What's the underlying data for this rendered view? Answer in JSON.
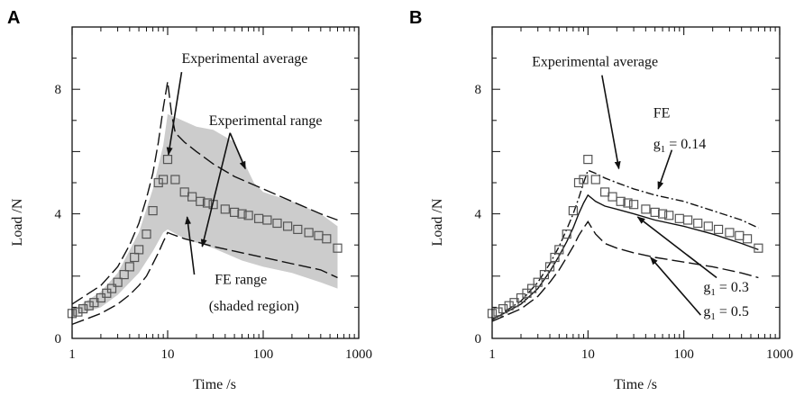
{
  "chart_data": [
    {
      "type": "line",
      "panel_label": "A",
      "xlabel": "Time /s",
      "ylabel": "Load /N",
      "x_scale": "log",
      "xlim": [
        1,
        1000
      ],
      "ylim": [
        0,
        10
      ],
      "x_ticks": [
        {
          "value": 1,
          "label": "1"
        },
        {
          "value": 10,
          "label": "10"
        },
        {
          "value": 100,
          "label": "100"
        },
        {
          "value": 1000,
          "label": "1000"
        }
      ],
      "y_ticks": [
        {
          "value": 0,
          "label": "0"
        },
        {
          "value": 4,
          "label": "4"
        },
        {
          "value": 8,
          "label": "8"
        }
      ],
      "grid": false,
      "series": [
        {
          "kind": "shaded-band",
          "color": "#cccccc",
          "upper": [
            [
              1,
              0.9
            ],
            [
              2,
              1.5
            ],
            [
              3,
              2.1
            ],
            [
              5,
              3.4
            ],
            [
              7,
              4.8
            ],
            [
              9,
              6.2
            ],
            [
              10,
              7.2
            ],
            [
              12,
              7.1
            ],
            [
              20,
              6.8
            ],
            [
              30,
              6.7
            ],
            [
              50,
              6.3
            ],
            [
              80,
              5.0
            ],
            [
              100,
              4.7
            ],
            [
              200,
              4.4
            ],
            [
              400,
              4.0
            ],
            [
              600,
              3.6
            ]
          ],
          "lower": [
            [
              1,
              0.7
            ],
            [
              2,
              1.0
            ],
            [
              3,
              1.4
            ],
            [
              5,
              2.1
            ],
            [
              7,
              2.8
            ],
            [
              9,
              3.4
            ],
            [
              10,
              3.5
            ],
            [
              15,
              3.2
            ],
            [
              30,
              2.9
            ],
            [
              60,
              2.5
            ],
            [
              100,
              2.3
            ],
            [
              200,
              2.1
            ],
            [
              400,
              1.8
            ],
            [
              600,
              1.6
            ]
          ]
        },
        {
          "kind": "dashed-line",
          "color": "#111111",
          "points": [
            [
              1,
              1.1
            ],
            [
              2,
              1.7
            ],
            [
              3,
              2.3
            ],
            [
              4,
              3.0
            ],
            [
              5,
              3.7
            ],
            [
              6,
              4.5
            ],
            [
              7,
              5.3
            ],
            [
              8,
              6.3
            ],
            [
              9,
              7.4
            ],
            [
              10,
              8.25
            ],
            [
              11,
              7.2
            ],
            [
              12,
              6.6
            ],
            [
              15,
              6.3
            ],
            [
              20,
              6.0
            ],
            [
              30,
              5.6
            ],
            [
              50,
              5.2
            ],
            [
              100,
              4.8
            ],
            [
              200,
              4.4
            ],
            [
              400,
              4.0
            ],
            [
              600,
              3.8
            ]
          ]
        },
        {
          "kind": "dashed-line",
          "color": "#111111",
          "points": [
            [
              1,
              0.45
            ],
            [
              2,
              0.8
            ],
            [
              3,
              1.1
            ],
            [
              4,
              1.4
            ],
            [
              5,
              1.7
            ],
            [
              6,
              2.0
            ],
            [
              7,
              2.4
            ],
            [
              8,
              2.75
            ],
            [
              9,
              3.1
            ],
            [
              10,
              3.4
            ],
            [
              11,
              3.35
            ],
            [
              15,
              3.2
            ],
            [
              20,
              3.1
            ],
            [
              30,
              2.95
            ],
            [
              50,
              2.8
            ],
            [
              100,
              2.6
            ],
            [
              200,
              2.4
            ],
            [
              400,
              2.2
            ],
            [
              600,
              1.95
            ]
          ]
        },
        {
          "kind": "markers",
          "marker": "open-square",
          "color": "#555555",
          "points": [
            [
              1,
              0.8
            ],
            [
              1.15,
              0.85
            ],
            [
              1.3,
              0.95
            ],
            [
              1.5,
              1.05
            ],
            [
              1.7,
              1.15
            ],
            [
              2,
              1.3
            ],
            [
              2.3,
              1.45
            ],
            [
              2.6,
              1.6
            ],
            [
              3,
              1.8
            ],
            [
              3.5,
              2.05
            ],
            [
              4,
              2.3
            ],
            [
              4.5,
              2.6
            ],
            [
              5,
              2.85
            ],
            [
              6,
              3.35
            ],
            [
              7,
              4.1
            ],
            [
              8,
              5.0
            ],
            [
              9,
              5.1
            ],
            [
              10,
              5.75
            ],
            [
              12,
              5.1
            ],
            [
              15,
              4.7
            ],
            [
              18,
              4.55
            ],
            [
              22,
              4.4
            ],
            [
              26,
              4.35
            ],
            [
              30,
              4.3
            ],
            [
              40,
              4.15
            ],
            [
              50,
              4.05
            ],
            [
              60,
              4.0
            ],
            [
              70,
              3.95
            ],
            [
              90,
              3.85
            ],
            [
              110,
              3.8
            ],
            [
              140,
              3.7
            ],
            [
              180,
              3.6
            ],
            [
              230,
              3.5
            ],
            [
              300,
              3.4
            ],
            [
              380,
              3.3
            ],
            [
              460,
              3.2
            ],
            [
              600,
              2.9
            ]
          ]
        }
      ],
      "annotations": [
        {
          "text": "Experimental average",
          "x": 14,
          "y": 8.85,
          "arrow_from": [
            14,
            8.55
          ],
          "arrow_to": [
            10.2,
            5.9
          ]
        },
        {
          "text": "Experimental range",
          "x": 27,
          "y": 6.85,
          "arrow_from": [
            45,
            6.6
          ],
          "arrow_to": [
            65,
            5.45
          ],
          "arrow2_to": [
            23,
            2.95
          ]
        },
        {
          "text": "FE range",
          "x": 31,
          "y": 1.75
        },
        {
          "text": "(shaded region)",
          "x": 27,
          "y": 0.9,
          "arrow_from": [
            19,
            2.05
          ],
          "arrow_to": [
            16,
            3.9
          ]
        }
      ]
    },
    {
      "type": "line",
      "panel_label": "B",
      "xlabel": "Time /s",
      "ylabel": "Load /N",
      "x_scale": "log",
      "xlim": [
        1,
        1000
      ],
      "ylim": [
        0,
        10
      ],
      "x_ticks": [
        {
          "value": 1,
          "label": "1"
        },
        {
          "value": 10,
          "label": "10"
        },
        {
          "value": 100,
          "label": "100"
        },
        {
          "value": 1000,
          "label": "1000"
        }
      ],
      "y_ticks": [
        {
          "value": 0,
          "label": "0"
        },
        {
          "value": 4,
          "label": "4"
        },
        {
          "value": 8,
          "label": "8"
        }
      ],
      "grid": false,
      "series": [
        {
          "kind": "dash-dot-line",
          "label_parts": [
            "g",
            "1",
            " = 0.14"
          ],
          "color": "#111111",
          "points": [
            [
              1,
              0.6
            ],
            [
              2,
              1.2
            ],
            [
              3,
              1.8
            ],
            [
              4,
              2.4
            ],
            [
              5,
              2.95
            ],
            [
              6,
              3.5
            ],
            [
              7,
              4.0
            ],
            [
              8,
              4.5
            ],
            [
              9,
              5.0
            ],
            [
              10,
              5.4
            ],
            [
              12,
              5.3
            ],
            [
              15,
              5.15
            ],
            [
              20,
              5.0
            ],
            [
              30,
              4.8
            ],
            [
              50,
              4.6
            ],
            [
              100,
              4.4
            ],
            [
              200,
              4.1
            ],
            [
              400,
              3.8
            ],
            [
              600,
              3.55
            ]
          ]
        },
        {
          "kind": "solid-line",
          "label_parts": [
            "g",
            "1",
            " = 0.3"
          ],
          "color": "#111111",
          "points": [
            [
              1,
              0.6
            ],
            [
              2,
              1.1
            ],
            [
              3,
              1.6
            ],
            [
              4,
              2.15
            ],
            [
              5,
              2.65
            ],
            [
              6,
              3.1
            ],
            [
              7,
              3.55
            ],
            [
              8,
              4.0
            ],
            [
              9,
              4.35
            ],
            [
              10,
              4.6
            ],
            [
              12,
              4.4
            ],
            [
              15,
              4.25
            ],
            [
              20,
              4.15
            ],
            [
              30,
              4.0
            ],
            [
              50,
              3.8
            ],
            [
              100,
              3.6
            ],
            [
              200,
              3.35
            ],
            [
              400,
              3.05
            ],
            [
              600,
              2.85
            ]
          ]
        },
        {
          "kind": "dashed-line",
          "label_parts": [
            "g",
            "1",
            " = 0.5"
          ],
          "color": "#111111",
          "points": [
            [
              1,
              0.55
            ],
            [
              2,
              0.95
            ],
            [
              3,
              1.35
            ],
            [
              4,
              1.8
            ],
            [
              5,
              2.2
            ],
            [
              6,
              2.6
            ],
            [
              7,
              2.95
            ],
            [
              8,
              3.3
            ],
            [
              9,
              3.55
            ],
            [
              10,
              3.75
            ],
            [
              12,
              3.35
            ],
            [
              15,
              3.05
            ],
            [
              20,
              2.9
            ],
            [
              30,
              2.75
            ],
            [
              50,
              2.6
            ],
            [
              100,
              2.45
            ],
            [
              200,
              2.3
            ],
            [
              400,
              2.1
            ],
            [
              600,
              1.95
            ]
          ]
        },
        {
          "kind": "markers",
          "marker": "open-square",
          "color": "#555555",
          "points": [
            [
              1,
              0.8
            ],
            [
              1.15,
              0.85
            ],
            [
              1.3,
              0.95
            ],
            [
              1.5,
              1.05
            ],
            [
              1.7,
              1.15
            ],
            [
              2,
              1.3
            ],
            [
              2.3,
              1.45
            ],
            [
              2.6,
              1.6
            ],
            [
              3,
              1.8
            ],
            [
              3.5,
              2.05
            ],
            [
              4,
              2.3
            ],
            [
              4.5,
              2.6
            ],
            [
              5,
              2.85
            ],
            [
              6,
              3.35
            ],
            [
              7,
              4.1
            ],
            [
              8,
              5.0
            ],
            [
              9,
              5.1
            ],
            [
              10,
              5.75
            ],
            [
              12,
              5.1
            ],
            [
              15,
              4.7
            ],
            [
              18,
              4.55
            ],
            [
              22,
              4.4
            ],
            [
              26,
              4.35
            ],
            [
              30,
              4.3
            ],
            [
              40,
              4.15
            ],
            [
              50,
              4.05
            ],
            [
              60,
              4.0
            ],
            [
              70,
              3.95
            ],
            [
              90,
              3.85
            ],
            [
              110,
              3.8
            ],
            [
              140,
              3.7
            ],
            [
              180,
              3.6
            ],
            [
              230,
              3.5
            ],
            [
              300,
              3.4
            ],
            [
              380,
              3.3
            ],
            [
              460,
              3.2
            ],
            [
              600,
              2.9
            ]
          ]
        }
      ],
      "annotations": [
        {
          "text": "Experimental average",
          "x": 2.6,
          "y": 8.75,
          "arrow_from": [
            14,
            8.45
          ],
          "arrow_to": [
            21,
            5.45
          ]
        },
        {
          "text": "FE",
          "x": 48,
          "y": 7.1
        },
        {
          "text_parts": [
            "g",
            "1",
            " = 0.14"
          ],
          "x": 48,
          "y": 6.1,
          "arrow_from": [
            75,
            6.05
          ],
          "arrow_to": [
            54,
            4.8
          ]
        },
        {
          "text_parts": [
            "g",
            "1",
            " = 0.3"
          ],
          "x": 160,
          "y": 1.5,
          "arrow_from": [
            220,
            1.95
          ],
          "arrow_to": [
            33,
            3.9
          ]
        },
        {
          "text_parts": [
            "g",
            "1",
            " = 0.5"
          ],
          "x": 160,
          "y": 0.72,
          "arrow_from": [
            150,
            0.75
          ],
          "arrow_to": [
            45,
            2.6
          ]
        }
      ]
    }
  ]
}
